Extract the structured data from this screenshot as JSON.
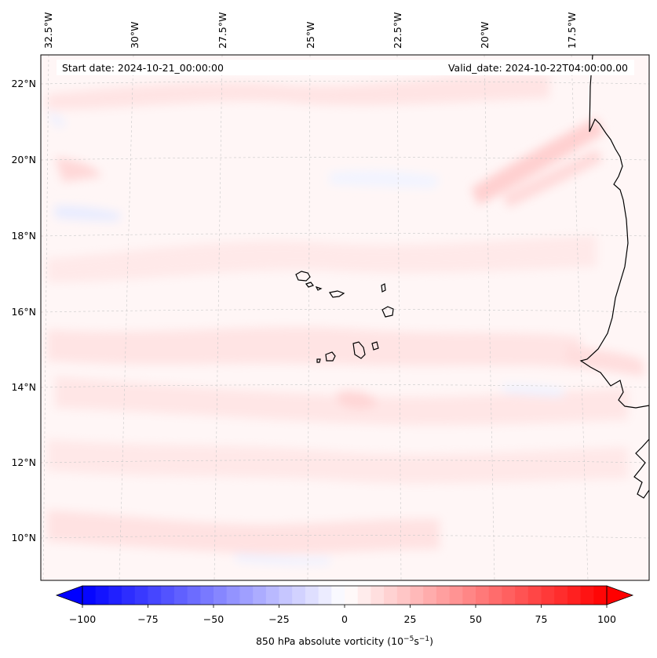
{
  "map": {
    "start_date": "Start date: 2024-10-21_00:00:00",
    "valid_date": "Valid_date: 2024-10-22T04:00:00.00",
    "lon_labels": [
      "32.5°W",
      "30°W",
      "27.5°W",
      "25°W",
      "22.5°W",
      "20°W",
      "17.5°W"
    ],
    "lat_labels": [
      "22°N",
      "20°N",
      "18°N",
      "16°N",
      "14°N",
      "12°N",
      "10°N"
    ]
  },
  "colorbar": {
    "ticks": [
      "−100",
      "−75",
      "−50",
      "−25",
      "0",
      "25",
      "50",
      "75",
      "100"
    ],
    "label_main": "850 hPa absolute vorticity (10",
    "label_exp1": "−5",
    "label_mid": "s",
    "label_exp2": "−1",
    "label_end": ")",
    "colors": {
      "min": "#0000ff",
      "mid": "#ffffff",
      "max": "#ff0000"
    }
  }
}
